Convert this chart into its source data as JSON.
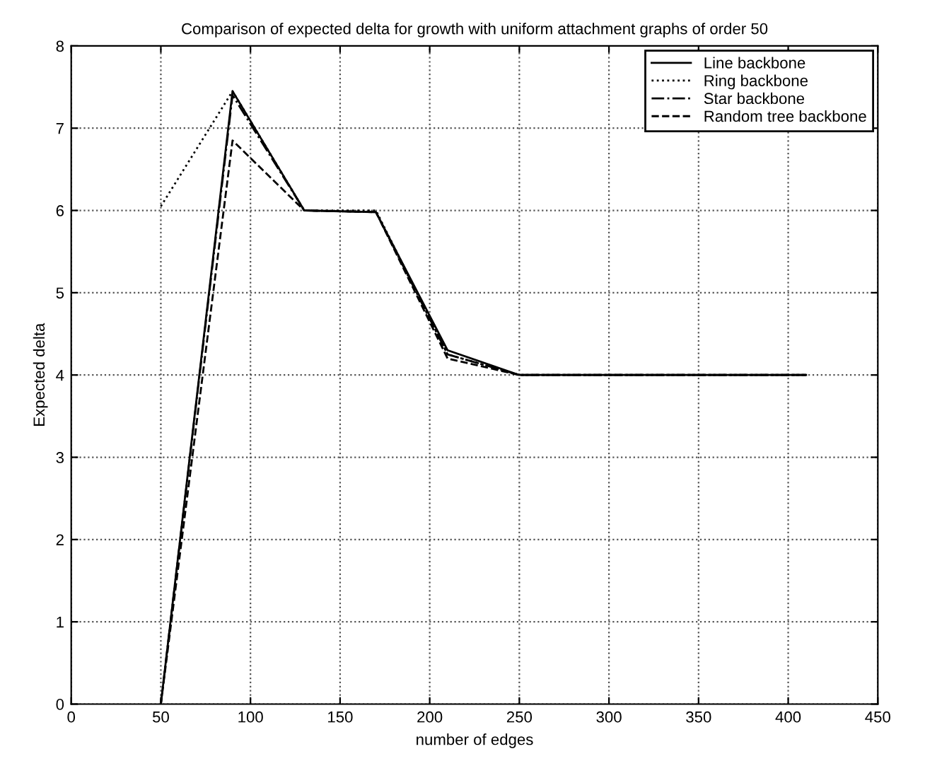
{
  "chart_data": {
    "type": "line",
    "title": "Comparison of expected delta for growth with uniform attachment graphs of order 50",
    "xlabel": "number of edges",
    "ylabel": "Expected delta",
    "x": [
      50,
      90,
      130,
      170,
      210,
      250,
      290,
      330,
      370,
      410
    ],
    "series": [
      {
        "name": "Line backbone",
        "color": "#000000",
        "line_style": "solid",
        "values": [
          0,
          7.45,
          6.0,
          5.98,
          4.3,
          4.0,
          4.0,
          4.0,
          4.0,
          4.0
        ]
      },
      {
        "name": "Ring backbone",
        "color": "#000000",
        "line_style": "dotted",
        "values": [
          6.05,
          7.45,
          6.0,
          6.0,
          4.25,
          4.0,
          4.0,
          4.0,
          4.0,
          4.0
        ]
      },
      {
        "name": "Star backbone",
        "color": "#000000",
        "line_style": "dashdot",
        "values": [
          0,
          7.4,
          6.0,
          5.98,
          4.25,
          4.0,
          4.0,
          4.0,
          4.0,
          4.0
        ]
      },
      {
        "name": "Random tree backbone",
        "color": "#000000",
        "line_style": "dashed",
        "values": [
          0,
          6.85,
          6.0,
          5.98,
          4.2,
          4.0,
          4.0,
          4.0,
          4.0,
          4.0
        ]
      }
    ],
    "xlim": [
      0,
      450
    ],
    "xticks": [
      0,
      50,
      100,
      150,
      200,
      250,
      300,
      350,
      400,
      450
    ],
    "ylim": [
      0,
      8
    ],
    "yticks": [
      0,
      1,
      2,
      3,
      4,
      5,
      6,
      7,
      8
    ],
    "grid": true,
    "legend": "top right",
    "marker": "none"
  }
}
